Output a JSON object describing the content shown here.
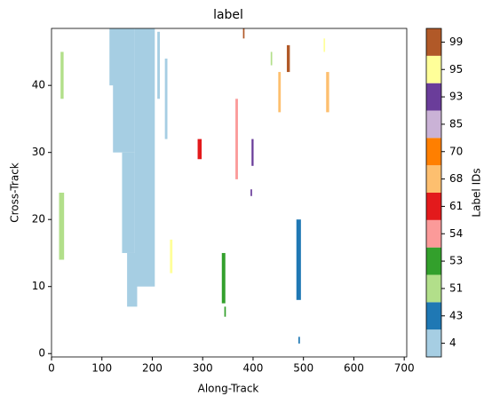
{
  "chart_data": {
    "type": "heatmap",
    "title": "label",
    "xlabel": "Along-Track",
    "ylabel": "Cross-Track",
    "xlim": [
      0,
      705
    ],
    "ylim": [
      -0.5,
      48.5
    ],
    "xticks": [
      0,
      100,
      200,
      300,
      400,
      500,
      600,
      700
    ],
    "yticks": [
      0,
      10,
      20,
      30,
      40
    ],
    "colorbar": {
      "label": "Label IDs",
      "levels": [
        4,
        43,
        51,
        53,
        54,
        61,
        68,
        70,
        85,
        93,
        95,
        99
      ],
      "colors": [
        "#a6cee3",
        "#1f78b4",
        "#b2df8a",
        "#33a02c",
        "#fb9a99",
        "#e31a1c",
        "#fdbf6f",
        "#ff7f00",
        "#cab2d6",
        "#6a3d9a",
        "#ffff99",
        "#b15928"
      ]
    },
    "segments": [
      {
        "x": [
          115,
          125
        ],
        "y": [
          40,
          48.5
        ],
        "value": 4
      },
      {
        "x": [
          122,
          165
        ],
        "y": [
          30,
          48.5
        ],
        "value": 4
      },
      {
        "x": [
          165,
          205
        ],
        "y": [
          10,
          48.5
        ],
        "value": 4
      },
      {
        "x": [
          140,
          165
        ],
        "y": [
          15,
          30
        ],
        "value": 4
      },
      {
        "x": [
          150,
          170
        ],
        "y": [
          7,
          15
        ],
        "value": 4
      },
      {
        "x": [
          210,
          215
        ],
        "y": [
          38,
          48
        ],
        "value": 4
      },
      {
        "x": [
          225,
          230
        ],
        "y": [
          32,
          44
        ],
        "value": 4
      },
      {
        "x": [
          15,
          25
        ],
        "y": [
          14,
          24
        ],
        "value": 51
      },
      {
        "x": [
          18,
          24
        ],
        "y": [
          38,
          45
        ],
        "value": 51
      },
      {
        "x": [
          338,
          345
        ],
        "y": [
          7.5,
          15
        ],
        "value": 53
      },
      {
        "x": [
          343,
          346
        ],
        "y": [
          5.5,
          7
        ],
        "value": 53
      },
      {
        "x": [
          486,
          495
        ],
        "y": [
          8,
          20
        ],
        "value": 43
      },
      {
        "x": [
          490,
          493
        ],
        "y": [
          1.5,
          2.5
        ],
        "value": 43
      },
      {
        "x": [
          365,
          370
        ],
        "y": [
          26,
          38
        ],
        "value": 54
      },
      {
        "x": [
          397,
          401
        ],
        "y": [
          28,
          32
        ],
        "value": 93
      },
      {
        "x": [
          395,
          398
        ],
        "y": [
          23.5,
          24.5
        ],
        "value": 93
      },
      {
        "x": [
          290,
          298
        ],
        "y": [
          29,
          32
        ],
        "value": 61
      },
      {
        "x": [
          467,
          473
        ],
        "y": [
          42,
          46
        ],
        "value": 99
      },
      {
        "x": [
          380,
          383
        ],
        "y": [
          47,
          48.5
        ],
        "value": 99
      },
      {
        "x": [
          450,
          455
        ],
        "y": [
          36,
          42
        ],
        "value": 68
      },
      {
        "x": [
          545,
          551
        ],
        "y": [
          36,
          42
        ],
        "value": 68
      },
      {
        "x": [
          235,
          240
        ],
        "y": [
          12,
          17
        ],
        "value": 95
      },
      {
        "x": [
          540,
          543
        ],
        "y": [
          45,
          47
        ],
        "value": 95
      },
      {
        "x": [
          435,
          438
        ],
        "y": [
          43,
          45
        ],
        "value": 51
      }
    ]
  }
}
